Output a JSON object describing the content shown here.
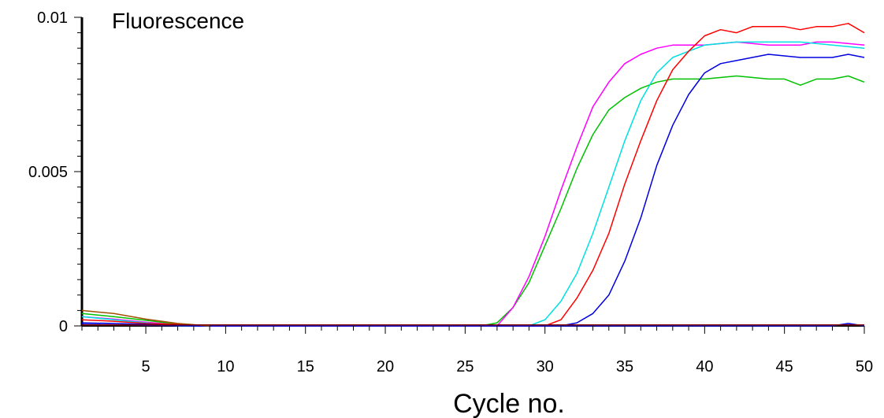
{
  "chart_data": {
    "type": "line",
    "ylabel": "Fluorescence",
    "xlabel": "Cycle no.",
    "xlim": [
      1,
      50
    ],
    "ylim": [
      0,
      0.01
    ],
    "x_ticks": [
      5,
      10,
      15,
      20,
      25,
      30,
      35,
      40,
      45,
      50
    ],
    "x_tick_labels": [
      "5",
      "10",
      "15",
      "20",
      "25",
      "30",
      "35",
      "40",
      "45",
      "50"
    ],
    "y_ticks": [
      0,
      0.005,
      0.01
    ],
    "y_tick_labels": [
      "0",
      "0.005",
      "0.01"
    ],
    "grid": false,
    "series": [
      {
        "color": "#00c000",
        "points": [
          [
            1,
            0.0004
          ],
          [
            3,
            0.0003
          ],
          [
            5,
            0.00018
          ],
          [
            7,
            5e-05
          ],
          [
            9,
            0
          ],
          [
            25,
            0
          ],
          [
            26,
            0
          ],
          [
            27,
            0.0001
          ],
          [
            28,
            0.0006
          ],
          [
            29,
            0.0014
          ],
          [
            30,
            0.0026
          ],
          [
            31,
            0.0038
          ],
          [
            32,
            0.0051
          ],
          [
            33,
            0.0062
          ],
          [
            34,
            0.007
          ],
          [
            35,
            0.0074
          ],
          [
            36,
            0.0077
          ],
          [
            37,
            0.0079
          ],
          [
            38,
            0.008
          ],
          [
            39,
            0.008
          ],
          [
            40,
            0.008
          ],
          [
            42,
            0.0081
          ],
          [
            44,
            0.008
          ],
          [
            45,
            0.008
          ],
          [
            46,
            0.0078
          ],
          [
            47,
            0.008
          ],
          [
            48,
            0.008
          ],
          [
            49,
            0.0081
          ],
          [
            50,
            0.0079
          ]
        ]
      },
      {
        "color": "#ff00ff",
        "points": [
          [
            1,
            0.0003
          ],
          [
            3,
            0.00022
          ],
          [
            5,
            0.00012
          ],
          [
            7,
            3e-05
          ],
          [
            9,
            0
          ],
          [
            26,
            0
          ],
          [
            27,
            0
          ],
          [
            28,
            0.0006
          ],
          [
            29,
            0.0016
          ],
          [
            30,
            0.0029
          ],
          [
            31,
            0.0044
          ],
          [
            32,
            0.0058
          ],
          [
            33,
            0.0071
          ],
          [
            34,
            0.0079
          ],
          [
            35,
            0.0085
          ],
          [
            36,
            0.0088
          ],
          [
            37,
            0.009
          ],
          [
            38,
            0.0091
          ],
          [
            40,
            0.0091
          ],
          [
            42,
            0.0092
          ],
          [
            44,
            0.0091
          ],
          [
            46,
            0.0091
          ],
          [
            47,
            0.0092
          ],
          [
            48,
            0.0092
          ],
          [
            50,
            0.0091
          ]
        ]
      },
      {
        "color": "#00e0e0",
        "points": [
          [
            1,
            0.0003
          ],
          [
            3,
            0.0002
          ],
          [
            5,
            0.0001
          ],
          [
            7,
            0
          ],
          [
            29,
            0
          ],
          [
            30,
            0.0002
          ],
          [
            31,
            0.0008
          ],
          [
            32,
            0.0017
          ],
          [
            33,
            0.003
          ],
          [
            34,
            0.0045
          ],
          [
            35,
            0.006
          ],
          [
            36,
            0.0073
          ],
          [
            37,
            0.0082
          ],
          [
            38,
            0.0087
          ],
          [
            39,
            0.0089
          ],
          [
            40,
            0.0091
          ],
          [
            42,
            0.0092
          ],
          [
            44,
            0.0092
          ],
          [
            46,
            0.0092
          ],
          [
            48,
            0.0091
          ],
          [
            50,
            0.009
          ]
        ]
      },
      {
        "color": "#ff0000",
        "points": [
          [
            1,
            0.0002
          ],
          [
            3,
            0.00015
          ],
          [
            5,
            8e-05
          ],
          [
            7,
            5e-05
          ],
          [
            9,
            0
          ],
          [
            30,
            0
          ],
          [
            31,
            0.0002
          ],
          [
            32,
            0.0009
          ],
          [
            33,
            0.0018
          ],
          [
            34,
            0.003
          ],
          [
            35,
            0.0046
          ],
          [
            36,
            0.006
          ],
          [
            37,
            0.0073
          ],
          [
            38,
            0.0083
          ],
          [
            39,
            0.0089
          ],
          [
            40,
            0.0094
          ],
          [
            41,
            0.0096
          ],
          [
            42,
            0.0095
          ],
          [
            43,
            0.0097
          ],
          [
            44,
            0.0097
          ],
          [
            45,
            0.0097
          ],
          [
            46,
            0.0096
          ],
          [
            47,
            0.0097
          ],
          [
            48,
            0.0097
          ],
          [
            49,
            0.0098
          ],
          [
            50,
            0.0095
          ]
        ]
      },
      {
        "color": "#0000e0",
        "points": [
          [
            1,
            0.0001
          ],
          [
            3,
            8e-05
          ],
          [
            5,
            5e-05
          ],
          [
            8,
            0
          ],
          [
            31,
            0
          ],
          [
            32,
            0.0001
          ],
          [
            33,
            0.0004
          ],
          [
            34,
            0.001
          ],
          [
            35,
            0.0021
          ],
          [
            36,
            0.0035
          ],
          [
            37,
            0.0052
          ],
          [
            38,
            0.0065
          ],
          [
            39,
            0.0075
          ],
          [
            40,
            0.0082
          ],
          [
            41,
            0.0085
          ],
          [
            42,
            0.0086
          ],
          [
            44,
            0.0088
          ],
          [
            46,
            0.0087
          ],
          [
            48,
            0.0087
          ],
          [
            49,
            0.0088
          ],
          [
            50,
            0.0087
          ]
        ]
      },
      {
        "color": "#0000e0",
        "points": [
          [
            1,
            5e-05
          ],
          [
            5,
            2e-05
          ],
          [
            8,
            0
          ],
          [
            47,
            0
          ],
          [
            48,
            0
          ],
          [
            49,
            8e-05
          ],
          [
            50,
            0
          ]
        ]
      },
      {
        "color": "#a05000",
        "points": [
          [
            1,
            0.0005
          ],
          [
            3,
            0.0004
          ],
          [
            5,
            0.00022
          ],
          [
            7,
            8e-05
          ],
          [
            9,
            0
          ]
        ]
      },
      {
        "color": "#800000",
        "points": [
          [
            1,
            3e-05
          ],
          [
            50,
            3e-05
          ]
        ]
      }
    ]
  }
}
